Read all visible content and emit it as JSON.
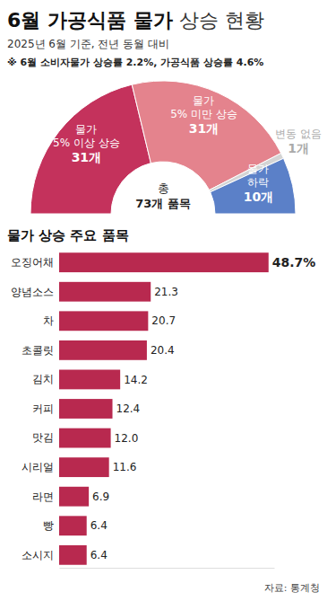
{
  "header": {
    "title": "6월 가공식품 물가 상승 현황",
    "subtitle": "2025년 6월 기준, 전년 동월 대비",
    "note": "※ 6월 소비자물가 상승률 2.2%, 가공식품 상승률 4.6%"
  },
  "source": "자료: 통계청",
  "chart_data": [
    {
      "type": "pie",
      "categories": [
        "물가 5% 이상 상승",
        "물가 5% 미만 상승",
        "변동 없음",
        "물가 하락"
      ],
      "values": [
        31,
        31,
        1,
        10
      ],
      "value_labels": [
        "31개",
        "31개",
        "1개",
        "10개"
      ],
      "colors": [
        "#c4325c",
        "#e4838d",
        "#d4d4d4",
        "#5b80c8"
      ],
      "annotations": [
        "총 73개 품목"
      ],
      "data_labels": true
    },
    {
      "type": "bar",
      "title": "물가 상승 주요 품목",
      "orientation": "horizontal",
      "categories": [
        "오징어채",
        "양념소스",
        "차",
        "초콜릿",
        "김치",
        "커피",
        "맛김",
        "시리얼",
        "라면",
        "빵",
        "소시지"
      ],
      "values": [
        48.7,
        21.3,
        20.7,
        20.4,
        14.2,
        12.4,
        12.0,
        11.6,
        6.9,
        6.4,
        6.4
      ],
      "value_labels": [
        "48.7%",
        "21.3",
        "20.7",
        "20.4",
        "14.2",
        "12.4",
        "12.0",
        "11.6",
        "6.9",
        "6.4",
        "6.4"
      ],
      "color": "#b8294f",
      "xlim": [
        0,
        50
      ],
      "xticks": [],
      "tick_labels": "y",
      "data_labels": true,
      "grid": false
    }
  ]
}
